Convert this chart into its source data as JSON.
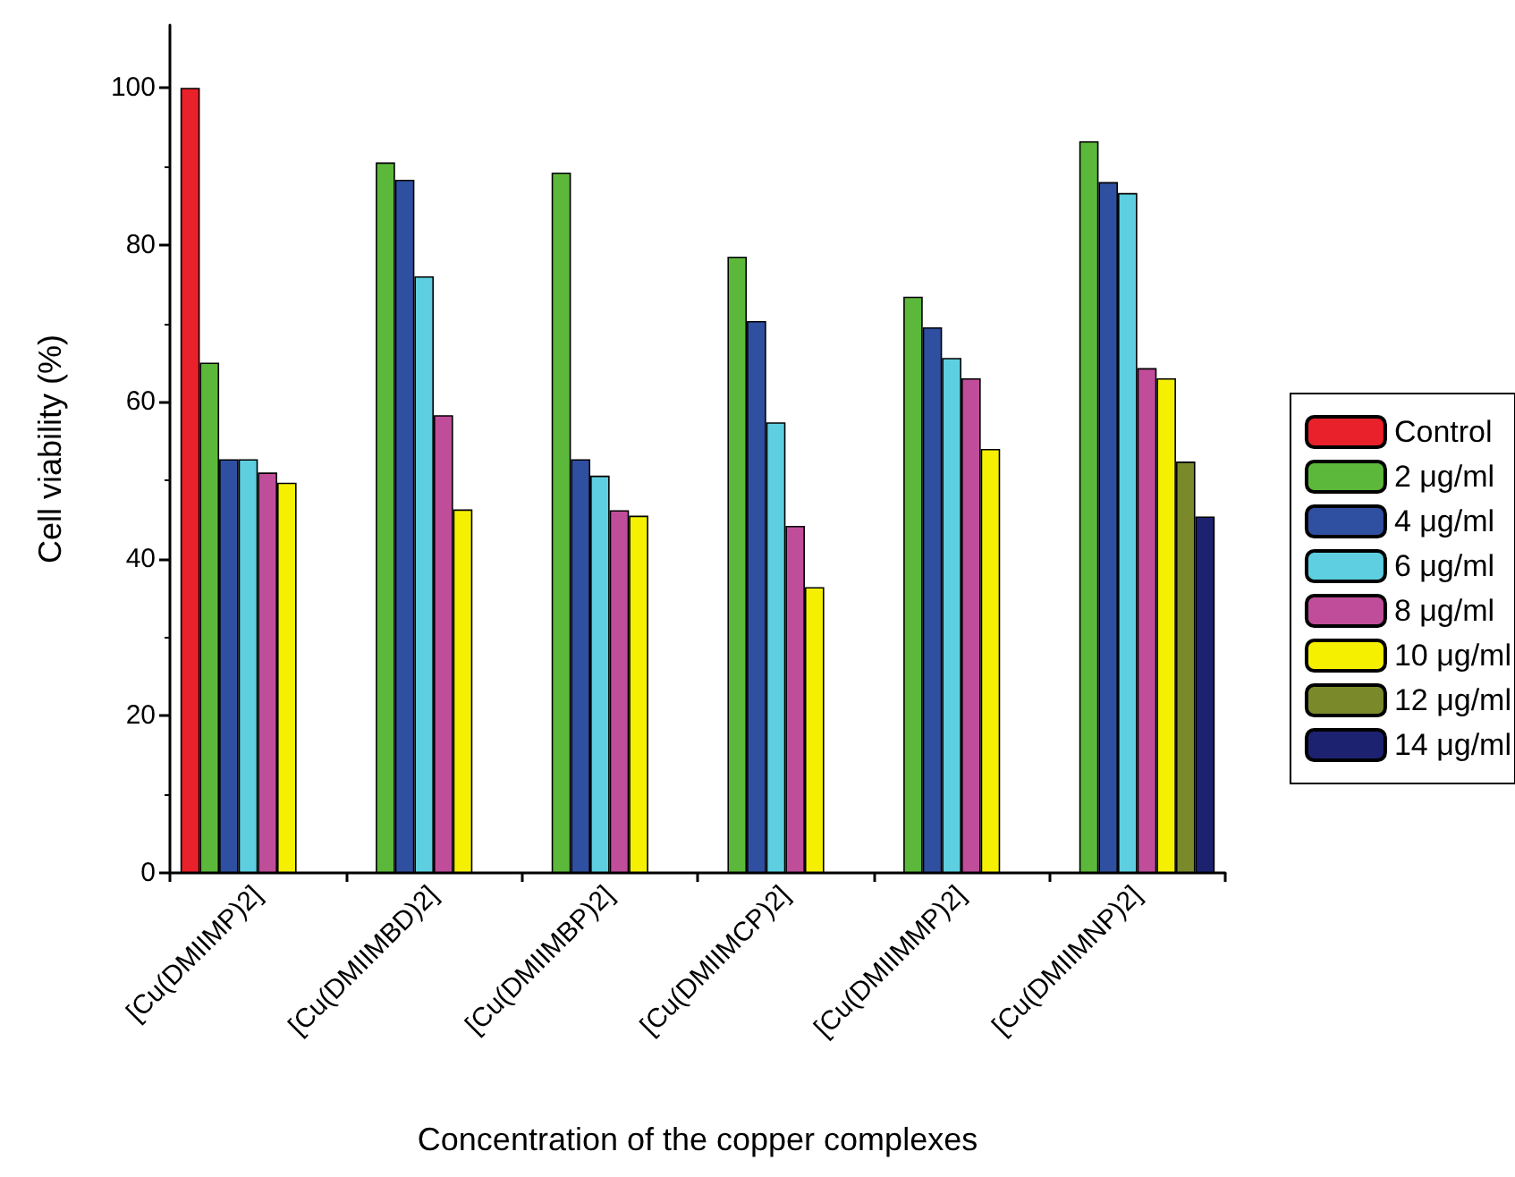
{
  "chart_data": {
    "type": "bar",
    "xlabel": "Concentration of the copper complexes",
    "ylabel": "Cell viability (%)",
    "categories": [
      "[Cu(DMIIMP)2]",
      "[Cu(DMIIMBD)2]",
      "[Cu(DMIIMBP)2]",
      "[Cu(DMIIMCP)2]",
      "[Cu(DMIIMMP)2]",
      "[Cu(DMIIMNP)2]"
    ],
    "series": [
      {
        "name": "Control",
        "color": "#e8212a",
        "values": [
          100,
          null,
          null,
          null,
          null,
          null
        ]
      },
      {
        "name": "2 μg/ml",
        "color": "#5cb83a",
        "values": [
          65,
          90.5,
          89.2,
          78.5,
          73.4,
          93.2
        ]
      },
      {
        "name": "4 μg/ml",
        "color": "#2f4fa0",
        "values": [
          52.7,
          88.3,
          52.7,
          70.3,
          69.5,
          88
        ]
      },
      {
        "name": "6 μg/ml",
        "color": "#5ecfe0",
        "values": [
          52.7,
          76,
          50.6,
          57.4,
          65.6,
          86.6
        ]
      },
      {
        "name": "8 μg/ml",
        "color": "#c04d9a",
        "values": [
          51,
          58.3,
          46.2,
          44.2,
          63,
          64.3
        ]
      },
      {
        "name": "10 μg/ml",
        "color": "#f5f000",
        "values": [
          49.7,
          46.3,
          45.5,
          36.4,
          54,
          63
        ]
      },
      {
        "name": "12 μg/ml",
        "color": "#7a8a2a",
        "values": [
          null,
          null,
          null,
          null,
          null,
          52.4
        ]
      },
      {
        "name": "14 μg/ml",
        "color": "#1c2270",
        "values": [
          null,
          null,
          null,
          null,
          null,
          45.4
        ]
      }
    ],
    "ylim": [
      0,
      108
    ],
    "yticks": [
      0,
      20,
      40,
      60,
      80,
      100
    ],
    "grid": false,
    "legend": "right"
  }
}
